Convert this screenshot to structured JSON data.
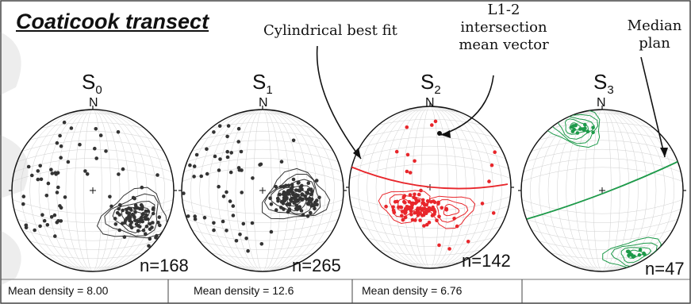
{
  "title": "Coaticook transect",
  "annotations": {
    "cylindrical_fit": "Cylindrical best fit",
    "intersection_l1": "L1-2",
    "intersection_l2": "intersection",
    "intersection_l3": "mean vector",
    "median_l1": "Median",
    "median_l2": "plan"
  },
  "north_label": "N",
  "nets": [
    {
      "symbol": "S",
      "sub": "0",
      "n": "n=168",
      "density": "Mean density = 8.00",
      "color": "#333333"
    },
    {
      "symbol": "S",
      "sub": "1",
      "n": "n=265",
      "density": "Mean density = 12.6",
      "color": "#333333"
    },
    {
      "symbol": "S",
      "sub": "2",
      "n": "n=142",
      "density": "Mean density = 6.76",
      "color": "#e8262b"
    },
    {
      "symbol": "S",
      "sub": "3",
      "n": "n=47",
      "density": "",
      "color": "#1e9a4a"
    }
  ],
  "colors": {
    "s0": "#333333",
    "s1": "#333333",
    "s2": "#e8262b",
    "s3": "#1e9a4a",
    "frame": "#555555"
  }
}
